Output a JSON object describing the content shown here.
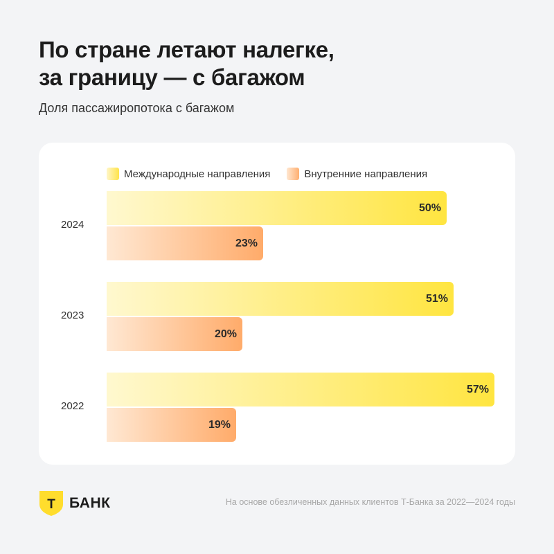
{
  "header": {
    "title_line1": "По стране летают налегке,",
    "title_line2": "за границу — с багажом",
    "subtitle": "Доля пассажиропотока с багажом"
  },
  "colors": {
    "international": "#ffe540",
    "domestic": "#ffab6a",
    "brand": "#ffdd2d"
  },
  "chart_data": {
    "type": "bar",
    "orientation": "horizontal",
    "categories": [
      "2024",
      "2023",
      "2022"
    ],
    "series": [
      {
        "name": "Международные направления",
        "values": [
          50,
          51,
          57
        ],
        "labels": [
          "50%",
          "51%",
          "57%"
        ]
      },
      {
        "name": "Внутренние направления",
        "values": [
          23,
          20,
          19
        ],
        "labels": [
          "23%",
          "20%",
          "19%"
        ]
      }
    ],
    "unit": "%",
    "xlim": [
      0,
      57
    ],
    "grid": false,
    "legend": "top"
  },
  "footer": {
    "brand": "БАНК",
    "logo_letter": "Т",
    "logo_icon": "t-bank-shield-icon",
    "note": "На основе обезличенных данных клиентов Т-Банка за 2022—2024 годы"
  }
}
